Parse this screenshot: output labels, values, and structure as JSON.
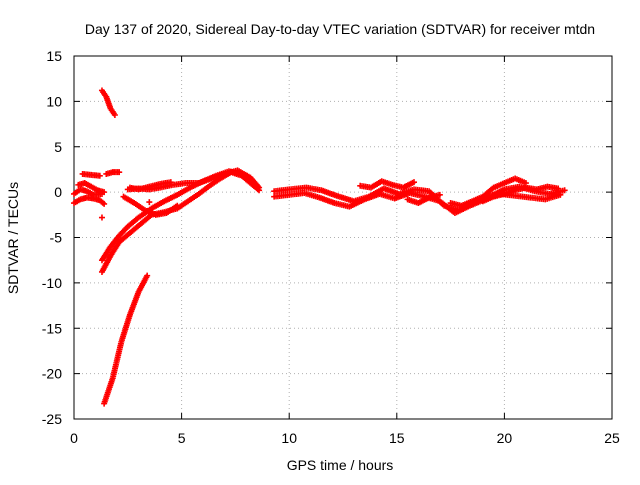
{
  "chart_data": {
    "type": "scatter",
    "title": "Day 137 of 2020, Sidereal Day-to-day VTEC variation (SDTVAR) for receiver mtdn",
    "xlabel": "GPS time / hours",
    "ylabel": "SDTVAR / TECUs",
    "xlim": [
      0,
      25
    ],
    "ylim": [
      -25,
      15
    ],
    "xticks": [
      "0",
      "5",
      "10",
      "15",
      "20",
      "25"
    ],
    "yticks": [
      "15",
      "10",
      "5",
      "0",
      "-5",
      "-10",
      "-15",
      "-20",
      "-25"
    ],
    "grid": true,
    "marker": "+",
    "series": [
      {
        "name": "SDTVAR",
        "color": "#ff0000",
        "segments": [
          {
            "x": [
              1.3,
              1.5,
              1.7,
              1.9
            ],
            "y": [
              11.2,
              10.5,
              9.2,
              8.5
            ]
          },
          {
            "x": [
              1.4,
              1.8,
              2.2,
              2.6,
              3.0,
              3.4
            ],
            "y": [
              -23.3,
              -20.5,
              -16.5,
              -13.5,
              -11.0,
              -9.2
            ]
          },
          {
            "x": [
              1.3,
              1.7,
              2.1,
              2.6,
              3.1,
              3.6,
              4.2,
              4.8,
              5.3,
              5.8,
              6.3,
              6.8,
              7.3,
              7.8,
              8.3,
              8.6
            ],
            "y": [
              -8.8,
              -7.0,
              -5.5,
              -4.5,
              -3.5,
              -2.5,
              -2.2,
              -1.8,
              -1.0,
              -0.2,
              0.7,
              1.5,
              2.2,
              1.8,
              0.8,
              0.2
            ]
          },
          {
            "x": [
              1.3,
              1.7,
              2.1,
              2.5,
              3.0,
              3.6,
              4.2,
              4.8,
              5.4,
              6.0,
              6.6,
              7.2,
              7.8,
              8.2
            ],
            "y": [
              -7.5,
              -6.0,
              -4.8,
              -3.8,
              -2.8,
              -1.8,
              -1.0,
              -0.3,
              0.5,
              1.2,
              1.8,
              2.3,
              2.0,
              1.3
            ]
          },
          {
            "x": [
              2.5,
              3.0,
              3.5,
              4.0,
              4.6,
              5.2,
              5.8,
              6.4,
              7.0,
              7.6,
              8.2,
              8.6
            ],
            "y": [
              0.3,
              0.4,
              0.3,
              0.5,
              0.8,
              1.0,
              1.0,
              1.5,
              2.0,
              2.4,
              1.6,
              0.5
            ]
          },
          {
            "x": [
              2.3,
              2.8,
              3.3,
              3.8,
              4.3,
              4.8
            ],
            "y": [
              -0.5,
              -1.2,
              -2.0,
              -2.5,
              -2.3,
              -1.5
            ]
          },
          {
            "x": [
              0.0,
              0.3,
              0.6,
              0.9,
              1.2,
              1.4
            ],
            "y": [
              -1.2,
              -0.8,
              -0.6,
              -0.7,
              -0.9,
              -1.3
            ]
          },
          {
            "x": [
              0.2,
              0.5,
              0.8,
              1.1,
              1.4
            ],
            "y": [
              0.8,
              1.0,
              0.6,
              0.2,
              0.0
            ]
          },
          {
            "x": [
              0.0,
              0.3,
              0.6,
              0.9,
              1.3
            ],
            "y": [
              -0.2,
              0.3,
              0.1,
              -0.3,
              -0.2
            ]
          },
          {
            "x": [
              0.4,
              0.8,
              1.2
            ],
            "y": [
              2.0,
              1.9,
              1.8
            ]
          },
          {
            "x": [
              1.5,
              1.8,
              2.1
            ],
            "y": [
              2.0,
              2.2,
              2.2
            ]
          },
          {
            "x": [
              1.3
            ],
            "y": [
              -2.8
            ]
          },
          {
            "x": [
              2.6,
              3.0,
              3.5,
              4.0,
              4.5
            ],
            "y": [
              0.5,
              0.3,
              0.6,
              0.9,
              1.1
            ]
          },
          {
            "x": [
              3.5
            ],
            "y": [
              -1.1
            ]
          },
          {
            "x": [
              9.3,
              10.0,
              10.8,
              11.5,
              12.2,
              13.0,
              13.7,
              14.4,
              15.1,
              15.8,
              16.5,
              17.2,
              17.9,
              18.6,
              19.3,
              20.0,
              20.7,
              21.4,
              22.1,
              22.8
            ],
            "y": [
              0.1,
              0.3,
              0.5,
              0.2,
              -0.4,
              -1.0,
              -0.5,
              0.4,
              -0.2,
              0.3,
              0.1,
              -1.5,
              -2.0,
              -1.0,
              -0.5,
              0.3,
              0.6,
              0.1,
              -0.2,
              0.2
            ]
          },
          {
            "x": [
              9.3,
              10.0,
              10.7,
              11.4,
              12.1,
              12.8,
              13.5,
              14.2,
              14.9,
              15.6,
              16.3,
              17.0,
              17.7,
              18.4,
              19.1,
              19.8,
              20.5,
              21.2,
              21.9,
              22.6
            ],
            "y": [
              -0.5,
              -0.3,
              -0.1,
              -0.6,
              -1.2,
              -1.6,
              -0.8,
              -0.2,
              -0.7,
              -0.1,
              -0.5,
              -1.0,
              -2.3,
              -1.5,
              -0.8,
              -0.2,
              -0.4,
              -0.6,
              -0.8,
              -0.3
            ]
          },
          {
            "x": [
              13.3,
              13.8,
              14.3,
              14.8,
              15.3,
              15.8
            ],
            "y": [
              0.7,
              0.5,
              1.2,
              0.8,
              0.5,
              1.1
            ]
          },
          {
            "x": [
              17.5,
              18.0,
              18.5,
              19.0,
              19.5,
              20.0,
              20.5,
              21.0
            ],
            "y": [
              -1.2,
              -1.5,
              -1.0,
              -0.5,
              0.5,
              1.0,
              1.5,
              1.0
            ]
          },
          {
            "x": [
              19.0,
              19.5,
              20.0,
              20.5,
              21.0,
              21.5,
              22.0,
              22.5
            ],
            "y": [
              -1.0,
              -0.5,
              -0.2,
              0.2,
              0.5,
              0.3,
              0.6,
              0.4
            ]
          },
          {
            "x": [
              15.5,
              16.0,
              16.5,
              17.0
            ],
            "y": [
              -0.8,
              -1.2,
              -0.6,
              -0.3
            ]
          }
        ]
      }
    ]
  }
}
